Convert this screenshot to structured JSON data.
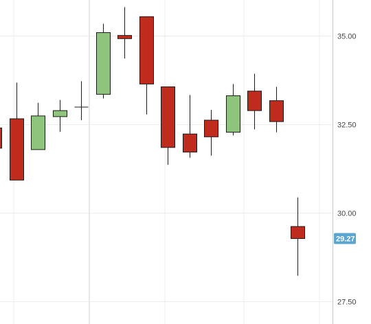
{
  "chart_data": {
    "type": "candlestick",
    "title": "",
    "xlabel": "",
    "ylabel": "",
    "ylim": [
      26.86,
      36.0
    ],
    "y_ticks": [
      {
        "value": 27.5,
        "label": "27.50"
      },
      {
        "value": 30.0,
        "label": "30.00"
      },
      {
        "value": 32.5,
        "label": "32.50"
      },
      {
        "value": 35.0,
        "label": "35.00"
      }
    ],
    "grid": true,
    "last_price": {
      "value": 29.27,
      "label": "29.27"
    },
    "candles": [
      {
        "index": 0,
        "open": 32.39,
        "high": 32.49,
        "low": 31.82,
        "close": 31.82,
        "direction": "down",
        "partial": true
      },
      {
        "index": 1,
        "open": 32.65,
        "high": 33.67,
        "low": 30.92,
        "close": 30.92,
        "direction": "down"
      },
      {
        "index": 2,
        "open": 31.78,
        "high": 33.1,
        "low": 31.78,
        "close": 32.73,
        "direction": "up"
      },
      {
        "index": 3,
        "open": 32.71,
        "high": 33.18,
        "low": 32.28,
        "close": 32.88,
        "direction": "up"
      },
      {
        "index": 4,
        "open": 32.98,
        "high": 33.71,
        "low": 32.61,
        "close": 32.98,
        "direction": "doji"
      },
      {
        "index": 5,
        "open": 33.34,
        "high": 35.33,
        "low": 33.22,
        "close": 35.08,
        "direction": "up"
      },
      {
        "index": 6,
        "open": 35.0,
        "high": 35.8,
        "low": 34.35,
        "close": 34.91,
        "direction": "down"
      },
      {
        "index": 7,
        "open": 35.53,
        "high": 35.53,
        "low": 32.77,
        "close": 33.63,
        "direction": "down"
      },
      {
        "index": 8,
        "open": 33.55,
        "high": 33.55,
        "low": 31.35,
        "close": 31.84,
        "direction": "down"
      },
      {
        "index": 9,
        "open": 32.22,
        "high": 33.32,
        "low": 31.55,
        "close": 31.71,
        "direction": "down"
      },
      {
        "index": 10,
        "open": 32.61,
        "high": 32.9,
        "low": 31.61,
        "close": 32.14,
        "direction": "down"
      },
      {
        "index": 11,
        "open": 32.27,
        "high": 33.63,
        "low": 32.18,
        "close": 33.3,
        "direction": "up"
      },
      {
        "index": 12,
        "open": 33.43,
        "high": 33.92,
        "low": 32.35,
        "close": 32.88,
        "direction": "down"
      },
      {
        "index": 13,
        "open": 33.16,
        "high": 33.55,
        "low": 32.27,
        "close": 32.57,
        "direction": "down"
      },
      {
        "index": 14,
        "open": 29.61,
        "high": 30.43,
        "low": 28.22,
        "close": 29.27,
        "direction": "down"
      }
    ],
    "colors": {
      "up": "#8fc47c",
      "down": "#bf2b1c",
      "outline": "#1a1a1a",
      "grid": "#ececec",
      "axis": "#c8c8c8",
      "last_price_bg": "#5aa6cf"
    }
  }
}
